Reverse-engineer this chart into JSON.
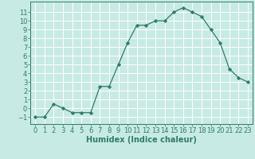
{
  "x": [
    0,
    1,
    2,
    3,
    4,
    5,
    6,
    7,
    8,
    9,
    10,
    11,
    12,
    13,
    14,
    15,
    16,
    17,
    18,
    19,
    20,
    21,
    22,
    23
  ],
  "y": [
    -1,
    -1,
    0.5,
    0,
    -0.5,
    -0.5,
    -0.5,
    2.5,
    2.5,
    5,
    7.5,
    9.5,
    9.5,
    10,
    10,
    11,
    11.5,
    11,
    10.5,
    9,
    7.5,
    4.5,
    3.5,
    3
  ],
  "line_color": "#2e7d6e",
  "marker": "D",
  "marker_size": 2.2,
  "bg_color": "#c8eae4",
  "grid_color": "#ffffff",
  "xlabel": "Humidex (Indice chaleur)",
  "xlabel_fontsize": 7,
  "tick_fontsize": 6,
  "xlim": [
    -0.5,
    23.5
  ],
  "ylim": [
    -1.8,
    12.2
  ],
  "yticks": [
    -1,
    0,
    1,
    2,
    3,
    4,
    5,
    6,
    7,
    8,
    9,
    10,
    11
  ],
  "xticks": [
    0,
    1,
    2,
    3,
    4,
    5,
    6,
    7,
    8,
    9,
    10,
    11,
    12,
    13,
    14,
    15,
    16,
    17,
    18,
    19,
    20,
    21,
    22,
    23
  ]
}
